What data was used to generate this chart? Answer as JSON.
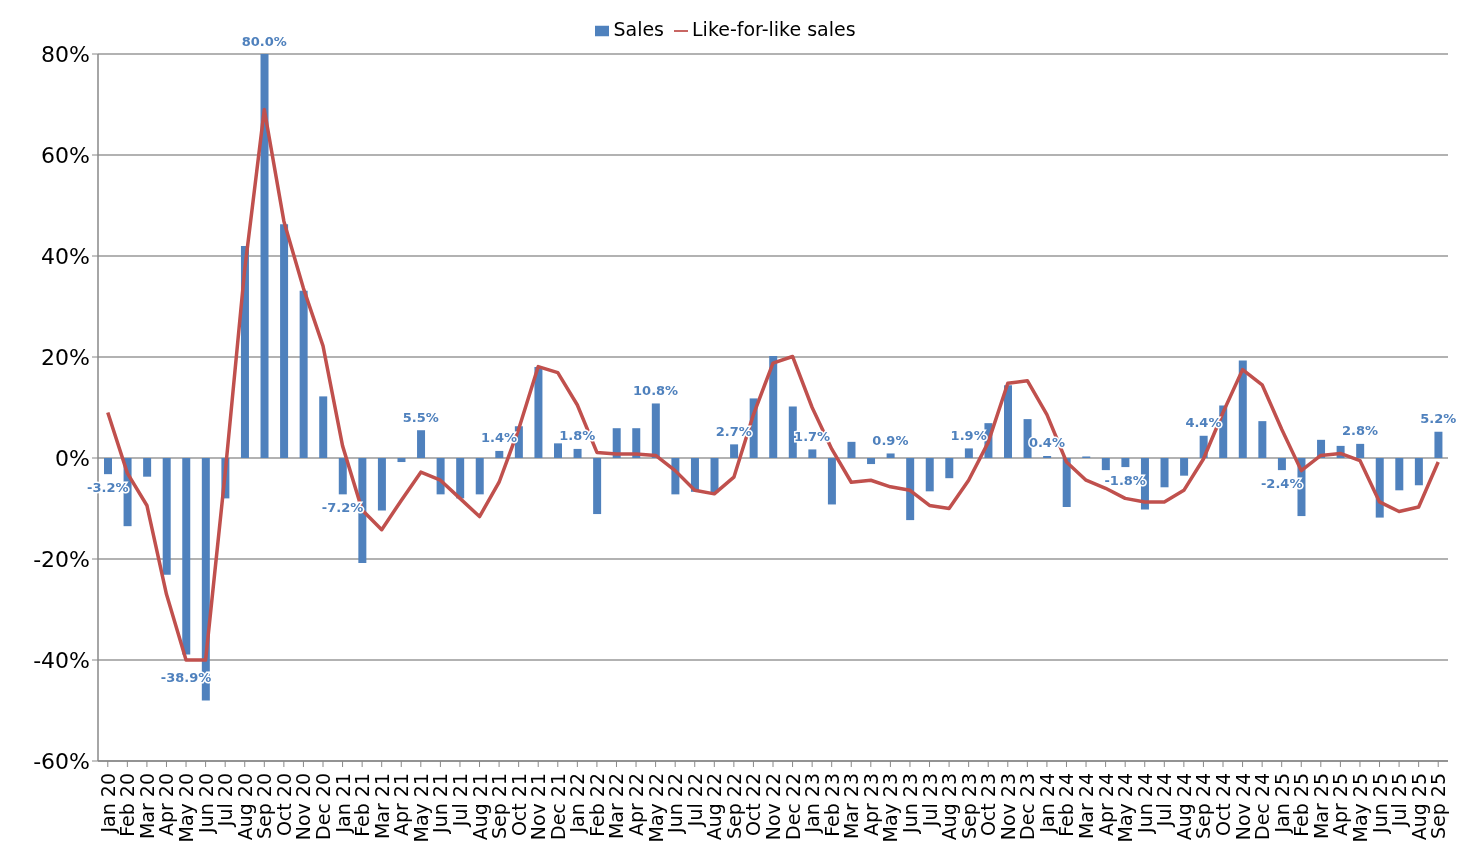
{
  "chart_data": {
    "type": "bar",
    "categories": [
      "Jan 20",
      "Feb 20",
      "Mar 20",
      "Apr 20",
      "May 20",
      "Jun 20",
      "Jul 20",
      "Aug 20",
      "Sep 20",
      "Oct 20",
      "Nov 20",
      "Dec 20",
      "Jan 21",
      "Feb 21",
      "Mar 21",
      "Apr 21",
      "May 21",
      "Jun 21",
      "Jul 21",
      "Aug 21",
      "Sep 21",
      "Oct 21",
      "Nov 21",
      "Dec 21",
      "Jan 22",
      "Feb 22",
      "Mar 22",
      "Apr 22",
      "May 22",
      "Jun 22",
      "Jul 22",
      "Aug 22",
      "Sep 22",
      "Oct 22",
      "Nov 22",
      "Dec 22",
      "Jan 23",
      "Feb 23",
      "Mar 23",
      "Apr 23",
      "May 23",
      "Jun 23",
      "Jul 23",
      "Aug 23",
      "Sep 23",
      "Oct 23",
      "Nov 23",
      "Dec 23",
      "Jan 24",
      "Feb 24",
      "Mar 24",
      "Apr 24",
      "May 24",
      "Jun 24",
      "Jul 24",
      "Aug 24",
      "Sep 24",
      "Oct 24",
      "Nov 24",
      "Dec 24",
      "Jan 25",
      "Feb 25",
      "Mar 25",
      "Apr 25",
      "May 25",
      "Jun 25",
      "Jul 25",
      "Aug 25",
      "Sep 25"
    ],
    "series": [
      {
        "name": "Sales",
        "color": "#4f81bd",
        "values": [
          -3.2,
          -13.5,
          -3.7,
          -23.1,
          -38.9,
          -48,
          -8,
          42,
          80,
          46.3,
          33.1,
          12.2,
          -7.2,
          -20.8,
          -10.4,
          -0.8,
          5.5,
          -7.2,
          -8,
          -7.2,
          1.4,
          6.3,
          18,
          2.9,
          1.8,
          -11.1,
          5.9,
          5.9,
          10.8,
          -7.2,
          -6.7,
          -6.8,
          2.7,
          11.8,
          20.2,
          10.2,
          1.7,
          -9.2,
          3.2,
          -1.2,
          0.9,
          -12.3,
          -6.6,
          -4,
          1.9,
          6.9,
          14.4,
          7.7,
          0.4,
          -9.7,
          0.3,
          -2.4,
          -1.8,
          -10.2,
          -5.8,
          -3.5,
          4.4,
          10.4,
          19.3,
          7.3,
          -2.4,
          -11.5,
          3.6,
          2.4,
          2.8,
          -11.8,
          -6.4,
          -5.4,
          5.2
        ],
        "value_labels": [
          "-3.2%",
          null,
          null,
          null,
          "-38.9%",
          null,
          null,
          null,
          "80.0%",
          null,
          null,
          null,
          "-7.2%",
          null,
          null,
          null,
          "5.5%",
          null,
          null,
          null,
          "1.4%",
          null,
          null,
          null,
          "1.8%",
          null,
          null,
          null,
          "10.8%",
          null,
          null,
          null,
          "2.7%",
          null,
          null,
          null,
          "1.7%",
          null,
          null,
          null,
          "0.9%",
          null,
          null,
          null,
          "1.9%",
          null,
          null,
          null,
          "0.4%",
          null,
          null,
          null,
          "-1.8%",
          null,
          null,
          null,
          "4.4%",
          null,
          null,
          null,
          "-2.4%",
          null,
          null,
          null,
          "2.8%",
          null,
          null,
          null,
          "5.2%"
        ]
      },
      {
        "name": "Like-for-like sales",
        "type": "line",
        "color": "#c0504d",
        "values": [
          9,
          -3,
          -9.4,
          -27,
          -40,
          -40,
          -3,
          37.4,
          69,
          46.9,
          33.6,
          22.2,
          2.4,
          -10.3,
          -14.2,
          -8.4,
          -2.8,
          -4.4,
          -8,
          -11.6,
          -4.8,
          5.7,
          18.1,
          16.9,
          10.5,
          1.1,
          0.8,
          0.8,
          0.5,
          -2.5,
          -6.4,
          -7.1,
          -3.8,
          8.6,
          18.8,
          20.1,
          10,
          1.8,
          -4.8,
          -4.4,
          -5.7,
          -6.4,
          -9.4,
          -10,
          -4.4,
          3.1,
          14.8,
          15.3,
          8.6,
          -0.8,
          -4.4,
          -6,
          -8,
          -8.7,
          -8.7,
          -6.4,
          -0.2,
          9,
          17.5,
          14.5,
          5.7,
          -2.5,
          0.5,
          0.9,
          -0.5,
          -8.7,
          -10.6,
          -9.7,
          -0.8
        ]
      }
    ],
    "ylim": [
      -60,
      80
    ],
    "yticks": [
      {
        "value": -60,
        "label": "-60%"
      },
      {
        "value": -40,
        "label": "-40%"
      },
      {
        "value": -20,
        "label": "-20%"
      },
      {
        "value": 0,
        "label": "0%"
      },
      {
        "value": 20,
        "label": "20%"
      },
      {
        "value": 40,
        "label": "40%"
      },
      {
        "value": 60,
        "label": "60%"
      },
      {
        "value": 80,
        "label": "80%"
      }
    ],
    "grid": "y",
    "legend": "top"
  }
}
